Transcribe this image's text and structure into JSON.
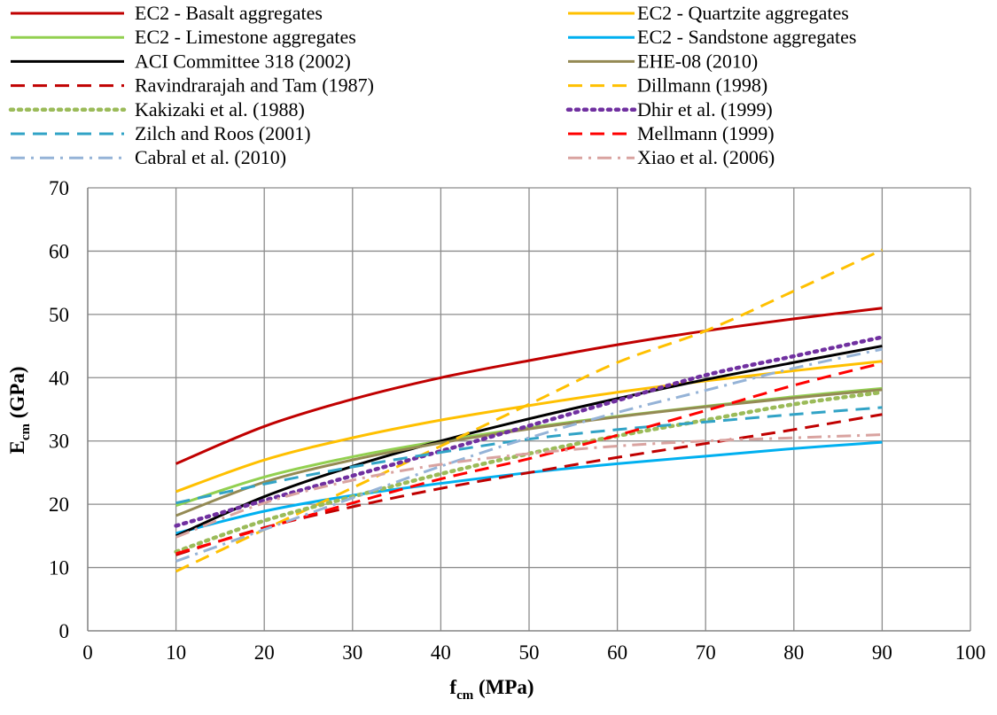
{
  "chart_data": {
    "type": "line",
    "xlabel_main": "f",
    "xlabel_sub": "cm",
    "xlabel_unit": " (MPa)",
    "ylabel_main": "E",
    "ylabel_sub": "cm",
    "ylabel_unit": " (GPa)",
    "xlim": [
      0,
      100
    ],
    "ylim": [
      0,
      70
    ],
    "x_ticks": [
      0,
      10,
      20,
      30,
      40,
      50,
      60,
      70,
      80,
      90,
      100
    ],
    "y_ticks": [
      0,
      10,
      20,
      30,
      40,
      50,
      60,
      70
    ],
    "grid": true,
    "legend_position": "top",
    "x": [
      10,
      20,
      30,
      40,
      50,
      60,
      70,
      80,
      90
    ],
    "series": [
      {
        "name": "EC2 - Basalt aggregates",
        "color": "#C00000",
        "dash": "solid",
        "values": [
          26.4,
          32.3,
          36.6,
          40.0,
          42.7,
          45.2,
          47.4,
          49.3,
          51.0
        ]
      },
      {
        "name": "EC2 - Quartzite aggregates",
        "color": "#FFC000",
        "dash": "solid",
        "values": [
          22.0,
          27.0,
          30.5,
          33.3,
          35.6,
          37.7,
          39.5,
          41.1,
          42.6
        ]
      },
      {
        "name": "EC2 - Limestone aggregates",
        "color": "#92D050",
        "dash": "solid",
        "values": [
          19.8,
          24.3,
          27.5,
          30.0,
          32.1,
          33.9,
          35.5,
          37.0,
          38.3
        ]
      },
      {
        "name": "EC2 - Sandstone aggregates",
        "color": "#00B0F0",
        "dash": "solid",
        "values": [
          15.4,
          18.9,
          21.4,
          23.3,
          25.0,
          26.4,
          27.6,
          28.8,
          29.8
        ]
      },
      {
        "name": "ACI Committee 318 (2002)",
        "color": "#000000",
        "dash": "solid",
        "values": [
          15.0,
          21.2,
          26.0,
          30.0,
          33.5,
          36.7,
          39.7,
          42.4,
          45.0
        ]
      },
      {
        "name": "EHE-08 (2010)",
        "color": "#948A54",
        "dash": "solid",
        "values": [
          18.2,
          23.5,
          27.0,
          29.7,
          31.9,
          33.8,
          35.4,
          36.8,
          38.1
        ]
      },
      {
        "name": "Ravindrarajah and Tam (1987)",
        "color": "#C00000",
        "dash": "dash",
        "values": [
          12.0,
          16.3,
          19.6,
          22.5,
          25.0,
          27.4,
          29.6,
          31.8,
          34.2
        ]
      },
      {
        "name": "Dillmann (1998)",
        "color": "#FFC000",
        "dash": "dash",
        "values": [
          9.4,
          16.0,
          22.6,
          29.2,
          35.8,
          42.4,
          47.4,
          53.7,
          60.2
        ]
      },
      {
        "name": "Kakizaki et al. (1988)",
        "color": "#9BBB59",
        "dash": "dot",
        "values": [
          12.5,
          17.4,
          21.2,
          24.8,
          28.0,
          30.8,
          33.3,
          35.8,
          37.7
        ]
      },
      {
        "name": "Dhir et al. (1999)",
        "color": "#7030A0",
        "dash": "dot",
        "values": [
          16.6,
          20.6,
          24.5,
          28.4,
          32.4,
          36.4,
          40.4,
          43.4,
          46.4
        ]
      },
      {
        "name": "Zilch and Roos (2001)",
        "color": "#31A3C6",
        "dash": "dash",
        "values": [
          20.2,
          23.2,
          25.9,
          28.2,
          30.3,
          31.8,
          33.0,
          34.2,
          35.3
        ]
      },
      {
        "name": "Mellmann (1999)",
        "color": "#FF0000",
        "dash": "dash",
        "values": [
          12.2,
          16.2,
          20.2,
          24.0,
          27.2,
          30.9,
          34.8,
          38.8,
          42.3
        ]
      },
      {
        "name": "Cabral et al. (2010)",
        "color": "#95B3D7",
        "dash": "dashdot",
        "values": [
          11.0,
          16.0,
          21.0,
          26.0,
          30.5,
          34.5,
          38.0,
          41.5,
          44.5
        ]
      },
      {
        "name": "Xiao et al. (2006)",
        "color": "#D9A3A0",
        "dash": "dashdot",
        "values": [
          14.8,
          20.2,
          23.8,
          26.3,
          28.0,
          29.2,
          30.0,
          30.5,
          31.0
        ]
      }
    ]
  }
}
